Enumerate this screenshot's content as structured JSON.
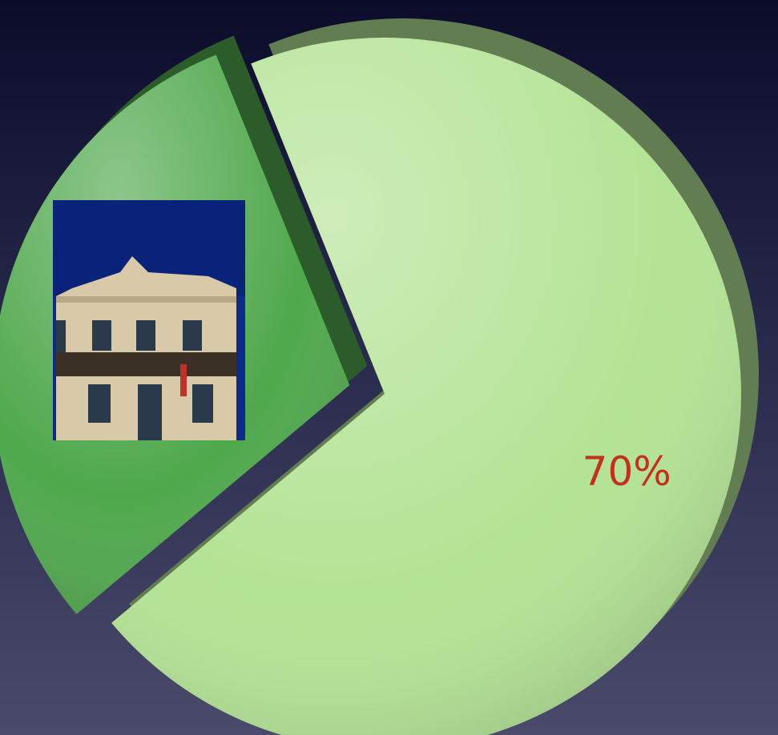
{
  "chart_data": {
    "type": "pie",
    "values": [
      70,
      30
    ],
    "value_labels": [
      "70%",
      null
    ],
    "colors": [
      "#b3e394",
      "#4fa84c"
    ]
  }
}
